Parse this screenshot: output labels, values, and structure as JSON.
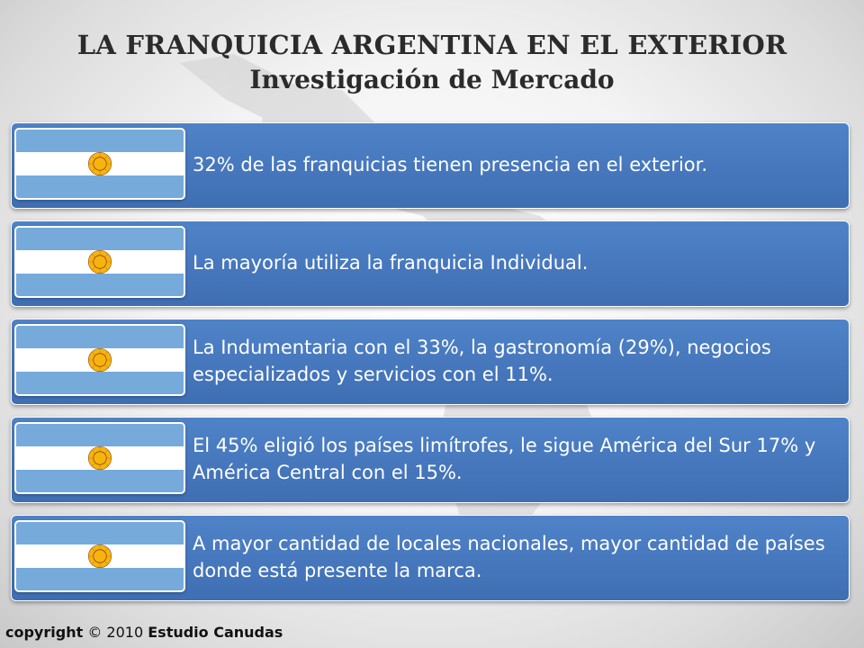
{
  "title": {
    "line1": "LA FRANQUICIA ARGENTINA EN EL EXTERIOR",
    "line2": "Investigación de Mercado"
  },
  "items": [
    {
      "text": "32% de las franquicias tienen presencia en el exterior.",
      "icon": "argentina-flag-icon"
    },
    {
      "text": "La mayoría utiliza la franquicia Individual.",
      "icon": "argentina-flag-icon"
    },
    {
      "text": "La Indumentaria con el 33%,  la gastronomía (29%), negocios especializados y servicios con el 11%.",
      "icon": "argentina-flag-icon"
    },
    {
      "text": "El 45% eligió los países limítrofes, le sigue América del Sur 17% y América Central con el 15%.",
      "icon": "argentina-flag-icon"
    },
    {
      "text": "A mayor cantidad de locales nacionales, mayor cantidad de países donde está presente la marca.",
      "icon": "argentina-flag-icon"
    }
  ],
  "footer": {
    "prefix": "copyright",
    "symbol": "©",
    "year": "2010",
    "company": "Estudio Canudas"
  },
  "colors": {
    "bar": "#4677bd",
    "flag_blue": "#75aadb",
    "sun": "#f6b40e",
    "text": "#ffffff"
  }
}
